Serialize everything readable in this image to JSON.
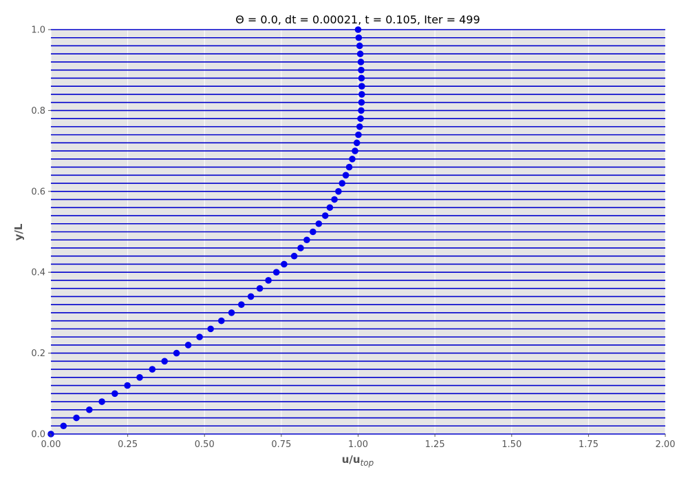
{
  "chart_data": {
    "type": "scatter",
    "title": "Θ = 0.0, dt = 0.00021, t =  0.105, Iter = 499",
    "xlabel": "u/u",
    "xlabel_sub": "top",
    "ylabel": "y/L",
    "xlim": [
      0,
      2.0
    ],
    "ylim": [
      0,
      1.0
    ],
    "xticks": [
      {
        "value": 0.0,
        "label": "0.00"
      },
      {
        "value": 0.25,
        "label": "0.25"
      },
      {
        "value": 0.5,
        "label": "0.50"
      },
      {
        "value": 0.75,
        "label": "0.75"
      },
      {
        "value": 1.0,
        "label": "1.00"
      },
      {
        "value": 1.25,
        "label": "1.25"
      },
      {
        "value": 1.5,
        "label": "1.50"
      },
      {
        "value": 1.75,
        "label": "1.75"
      },
      {
        "value": 2.0,
        "label": "2.00"
      }
    ],
    "yticks": [
      {
        "value": 0.0,
        "label": "0.0"
      },
      {
        "value": 0.2,
        "label": "0.2"
      },
      {
        "value": 0.4,
        "label": "0.4"
      },
      {
        "value": 0.6,
        "label": "0.6"
      },
      {
        "value": 0.8,
        "label": "0.8"
      },
      {
        "value": 1.0,
        "label": "1.0"
      }
    ],
    "grid": true,
    "style": {
      "background": "#e5e5e5",
      "grid_color": "#ffffff",
      "marker_color": "#0000ee",
      "line_color": "#0000cc",
      "text_color": "#555555",
      "title_color": "#000000"
    },
    "horizontal_lines": [
      0.0,
      0.02,
      0.04,
      0.06,
      0.08,
      0.1,
      0.12,
      0.14,
      0.16,
      0.18,
      0.2,
      0.22,
      0.24,
      0.26,
      0.28,
      0.3,
      0.32,
      0.34,
      0.36,
      0.38,
      0.4,
      0.42,
      0.44,
      0.46,
      0.48,
      0.5,
      0.52,
      0.54,
      0.56,
      0.58,
      0.6,
      0.62,
      0.64,
      0.66,
      0.68,
      0.7,
      0.72,
      0.74,
      0.76,
      0.78,
      0.8,
      0.82,
      0.84,
      0.86,
      0.88,
      0.9,
      0.92,
      0.94,
      0.96,
      0.98,
      1.0
    ],
    "series": [
      {
        "x": [
          0.0,
          0.041,
          0.083,
          0.125,
          0.166,
          0.208,
          0.249,
          0.289,
          0.33,
          0.37,
          0.409,
          0.447,
          0.484,
          0.52,
          0.555,
          0.588,
          0.62,
          0.651,
          0.68,
          0.708,
          0.734,
          0.759,
          0.792,
          0.813,
          0.833,
          0.853,
          0.872,
          0.893,
          0.908,
          0.923,
          0.936,
          0.948,
          0.96,
          0.971,
          0.981,
          0.99,
          0.996,
          1.001,
          1.005,
          1.008,
          1.01,
          1.011,
          1.012,
          1.012,
          1.011,
          1.01,
          1.009,
          1.007,
          1.005,
          1.002,
          1.0
        ],
        "y": [
          0.0,
          0.02,
          0.04,
          0.06,
          0.08,
          0.1,
          0.12,
          0.14,
          0.16,
          0.18,
          0.2,
          0.22,
          0.24,
          0.26,
          0.28,
          0.3,
          0.32,
          0.34,
          0.36,
          0.38,
          0.4,
          0.42,
          0.44,
          0.46,
          0.48,
          0.5,
          0.52,
          0.54,
          0.56,
          0.58,
          0.6,
          0.62,
          0.64,
          0.66,
          0.68,
          0.7,
          0.72,
          0.74,
          0.76,
          0.78,
          0.8,
          0.82,
          0.84,
          0.86,
          0.88,
          0.9,
          0.92,
          0.94,
          0.96,
          0.98,
          1.0
        ]
      }
    ]
  }
}
